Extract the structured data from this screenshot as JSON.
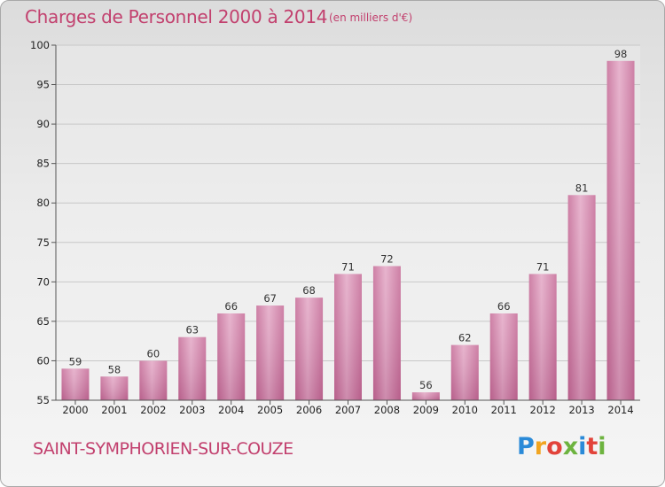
{
  "chart_data": {
    "type": "bar",
    "title": "Charges de Personnel 2000 à 2014",
    "subtitle": "(en milliers d'€)",
    "categories": [
      "2000",
      "2001",
      "2002",
      "2003",
      "2004",
      "2005",
      "2006",
      "2007",
      "2008",
      "2009",
      "2010",
      "2011",
      "2012",
      "2013",
      "2014"
    ],
    "values": [
      59,
      58,
      60,
      63,
      66,
      67,
      68,
      71,
      72,
      56,
      62,
      66,
      71,
      81,
      98
    ],
    "ylim": [
      55,
      100
    ],
    "yticks": [
      55,
      60,
      65,
      70,
      75,
      80,
      85,
      90,
      95,
      100
    ],
    "grid": true,
    "legend": "none",
    "bar_color": "#d48aad",
    "text_color": "#c2406e"
  },
  "footer": {
    "commune": "SAINT-SYMPHORIEN-SUR-COUZE",
    "logo_text": "Proxiti"
  }
}
